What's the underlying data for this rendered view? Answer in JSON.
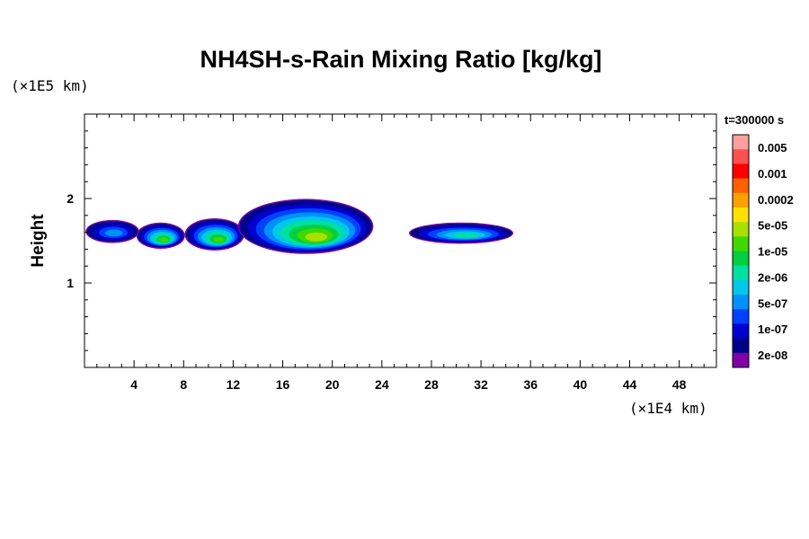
{
  "chart_data": {
    "type": "heatmap",
    "title": "NH4SH-s-Rain Mixing Ratio [kg/kg]",
    "xlabel": "",
    "ylabel": "Height",
    "x_unit": "(×1E4 km)",
    "y_unit": "(×1E5 km)",
    "xlim": [
      0,
      51
    ],
    "ylim": [
      0,
      3
    ],
    "x_ticks": [
      4,
      8,
      12,
      16,
      20,
      24,
      28,
      32,
      36,
      40,
      44,
      48
    ],
    "y_ticks": [
      1,
      2
    ],
    "colorbar": {
      "title": "t=300000 s",
      "labels": [
        "0.005",
        "0.001",
        "0.0002",
        "5e-05",
        "1e-05",
        "2e-06",
        "5e-07",
        "1e-07",
        "2e-08"
      ],
      "colors_top_to_bottom": [
        "#ff9f9f",
        "#ff5050",
        "#ff0000",
        "#ff6000",
        "#ffa000",
        "#ffe000",
        "#a8e000",
        "#40d800",
        "#00d040",
        "#00e0a0",
        "#00c8e8",
        "#0090ff",
        "#0040ff",
        "#0000d0",
        "#00008a",
        "#8000a8"
      ]
    },
    "shading": {
      "outline_color": "#8000a8",
      "levels_outer_to_inner": [
        "#00008a",
        "#0000d0",
        "#0040ff",
        "#0090ff",
        "#00c8e8",
        "#00e0a0",
        "#00d040",
        "#40d800",
        "#a8e000"
      ]
    },
    "regions": [
      {
        "x": [
          0.2,
          4.3
        ],
        "y": [
          1.49,
          1.73
        ],
        "peak_level": 4
      },
      {
        "x": [
          4.3,
          8.0
        ],
        "y": [
          1.42,
          1.7
        ],
        "peak_level": 8
      },
      {
        "x": [
          8.2,
          12.8
        ],
        "y": [
          1.4,
          1.75
        ],
        "peak_level": 8
      },
      {
        "x": [
          12.5,
          23.2
        ],
        "y": [
          1.36,
          1.98
        ],
        "peak_level": 9
      },
      {
        "x": [
          26.3,
          34.5
        ],
        "y": [
          1.48,
          1.7
        ],
        "peak_level": 6
      }
    ]
  }
}
